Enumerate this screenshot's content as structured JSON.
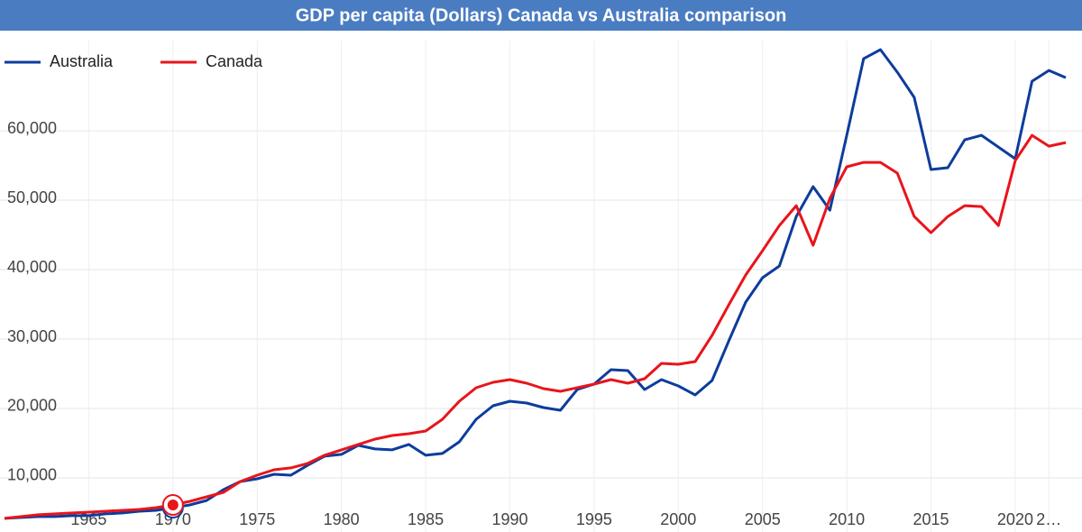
{
  "chart_data": {
    "type": "line",
    "title": "GDP per capita (Dollars) Canada vs Australia comparison",
    "x": [
      1960,
      1961,
      1962,
      1963,
      1964,
      1965,
      1966,
      1967,
      1968,
      1969,
      1970,
      1971,
      1972,
      1973,
      1974,
      1975,
      1976,
      1977,
      1978,
      1979,
      1980,
      1981,
      1982,
      1983,
      1984,
      1985,
      1986,
      1987,
      1988,
      1989,
      1990,
      1991,
      1992,
      1993,
      1994,
      1995,
      1996,
      1997,
      1998,
      1999,
      2000,
      2001,
      2002,
      2003,
      2004,
      2005,
      2006,
      2007,
      2008,
      2009,
      2010,
      2011,
      2012,
      2013,
      2014,
      2015,
      2016,
      2017,
      2018,
      2019,
      2020,
      2021,
      2022,
      2023
    ],
    "series": [
      {
        "name": "Australia",
        "color": "#0d3c9c",
        "values": [
          4160,
          4290,
          4420,
          4420,
          4550,
          4550,
          4810,
          4940,
          5190,
          5320,
          5710,
          6100,
          6750,
          8310,
          9480,
          9870,
          10520,
          10390,
          11820,
          13120,
          13380,
          14680,
          14160,
          14030,
          14810,
          13250,
          13510,
          15190,
          18440,
          20390,
          21040,
          20780,
          20130,
          19740,
          22730,
          23510,
          25580,
          25450,
          22730,
          24160,
          23250,
          21950,
          24030,
          29740,
          35320,
          38830,
          40520,
          47660,
          51950,
          48570,
          59350,
          70390,
          71690,
          68440,
          64810,
          54420,
          54680,
          58700,
          59350,
          57660,
          55970,
          67140,
          68700,
          67660
        ]
      },
      {
        "name": "Canada",
        "color": "#e8151b",
        "values": [
          4160,
          4420,
          4680,
          4810,
          4940,
          5060,
          5190,
          5320,
          5450,
          5710,
          6100,
          6620,
          7270,
          7920,
          9480,
          10390,
          11170,
          11430,
          12080,
          13250,
          14030,
          14810,
          15580,
          16100,
          16360,
          16750,
          18440,
          21040,
          22990,
          23770,
          24160,
          23640,
          22860,
          22470,
          22990,
          23510,
          24160,
          23640,
          24290,
          26490,
          26360,
          26750,
          30520,
          34940,
          39220,
          42730,
          46360,
          49220,
          43510,
          50260,
          54810,
          55450,
          55450,
          53900,
          47660,
          45320,
          47660,
          49220,
          49090,
          46360,
          55710,
          59350,
          57790,
          58310
        ]
      }
    ],
    "xlim": [
      1960,
      2023
    ],
    "xticks": [
      1965,
      1970,
      1975,
      1980,
      1985,
      1990,
      1995,
      2000,
      2005,
      2010,
      2015,
      2020,
      {
        "value": 2022,
        "label": "2…"
      }
    ],
    "ylim": [
      2200,
      73000
    ],
    "yticks": [
      {
        "value": 10000,
        "label": "10,000"
      },
      {
        "value": 20000,
        "label": "20,000"
      },
      {
        "value": 30000,
        "label": "30,000"
      },
      {
        "value": 40000,
        "label": "40,000"
      },
      {
        "value": 50000,
        "label": "50,000"
      },
      {
        "value": 60000,
        "label": "60,000"
      }
    ],
    "grid": true,
    "legend": "top-left"
  }
}
